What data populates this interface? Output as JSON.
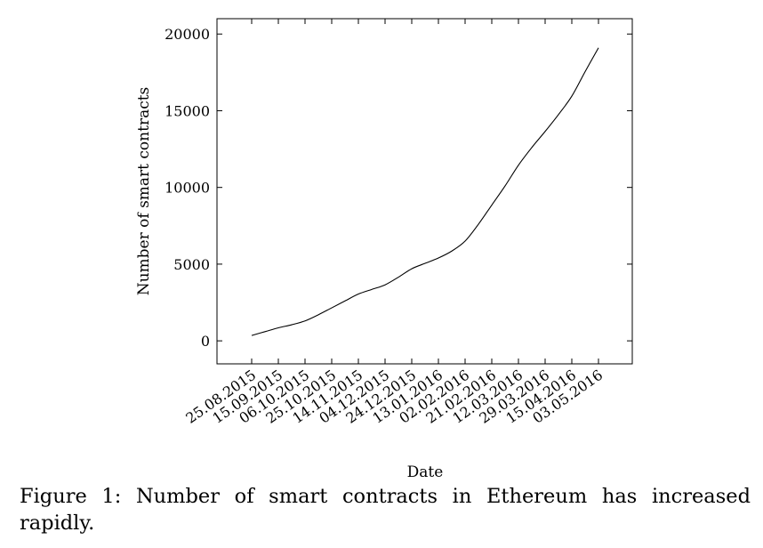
{
  "chart_data": {
    "type": "line",
    "xlabel": "Date",
    "ylabel": "Number of smart contracts",
    "ylim": [
      -1500,
      21000
    ],
    "yticks": [
      0,
      5000,
      10000,
      15000,
      20000
    ],
    "categories": [
      "25.08.2015",
      "15.09.2015",
      "06.10.2015",
      "25.10.2015",
      "14.11.2015",
      "04.12.2015",
      "24.12.2015",
      "13.01.2016",
      "02.02.2016",
      "21.02.2016",
      "12.03.2016",
      "29.03.2016",
      "15.04.2016",
      "03.05.2016"
    ],
    "series": [
      {
        "x": [
          0,
          0.5,
          1,
          1.5,
          2,
          2.5,
          3,
          3.5,
          4,
          4.5,
          5,
          5.5,
          6,
          6.5,
          7,
          7.5,
          8,
          8.5,
          9,
          9.5,
          10,
          10.5,
          11,
          11.5,
          12,
          12.5,
          13
        ],
        "values": [
          350,
          600,
          850,
          1050,
          1300,
          1700,
          2150,
          2600,
          3050,
          3350,
          3650,
          4150,
          4700,
          5050,
          5400,
          5850,
          6500,
          7600,
          8850,
          10100,
          11450,
          12600,
          13650,
          14750,
          15950,
          17550,
          19100
        ]
      }
    ],
    "grid": false,
    "legend": "none"
  },
  "caption": "Figure 1: Number of smart contracts in Ethereum has increased rapidly."
}
